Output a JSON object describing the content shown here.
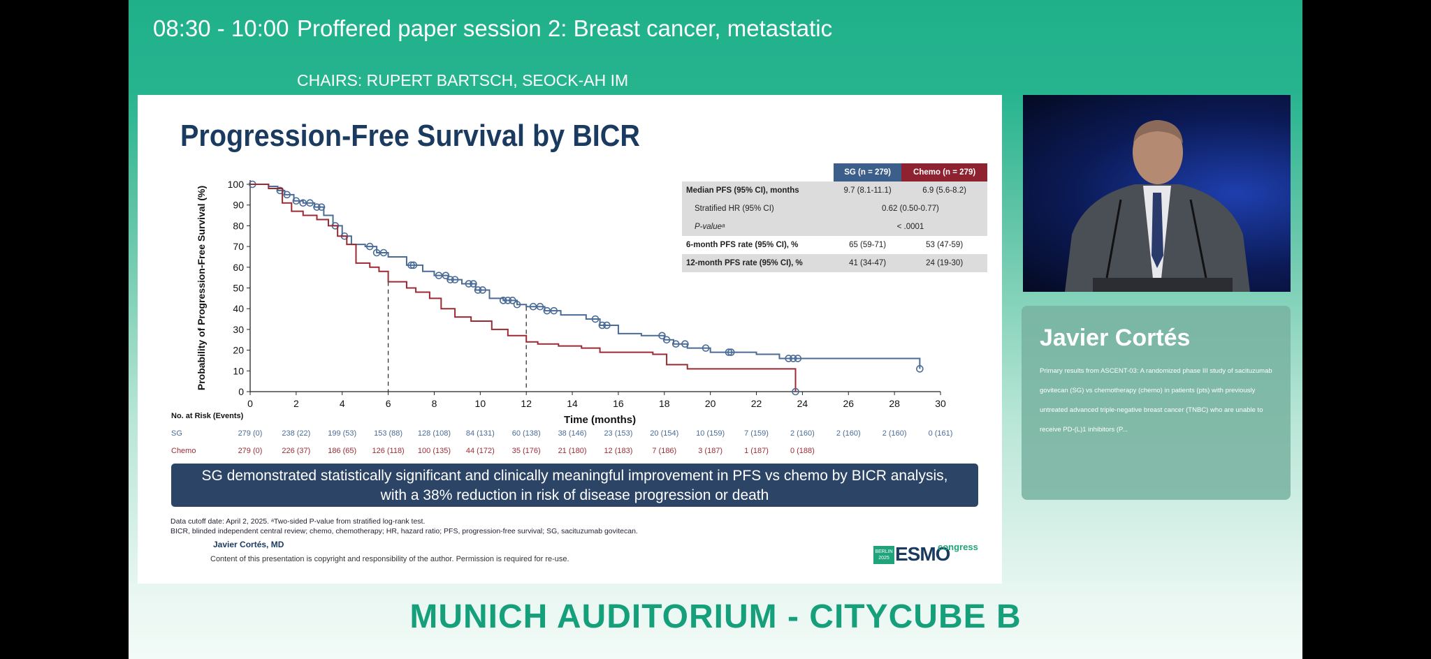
{
  "header": {
    "time": "08:30 - 10:00",
    "title": "Proffered paper session 2: Breast cancer, metastatic",
    "chairs": "CHAIRS: RUPERT BARTSCH, SEOCK-AH IM"
  },
  "slide": {
    "title": "Progression-Free Survival by BICR",
    "table": {
      "col_sg": "SG (n = 279)",
      "col_chemo": "Chemo (n = 279)",
      "rows": [
        {
          "label": "Median PFS (95% CI), months",
          "sg": "9.7 (8.1-11.1)",
          "chemo": "6.9 (5.6-8.2)"
        },
        {
          "label": "Stratified HR (95% CI)",
          "value": "0.62 (0.50-0.77)"
        },
        {
          "label": "P-valueᵃ",
          "value": "< .0001"
        },
        {
          "label": "6-month PFS rate (95% CI), %",
          "sg": "65 (59-71)",
          "chemo": "53 (47-59)"
        },
        {
          "label": "12-month PFS rate (95% CI), %",
          "sg": "41 (34-47)",
          "chemo": "24 (19-30)"
        }
      ]
    },
    "banner_line1": "SG demonstrated statistically significant and clinically meaningful improvement in PFS vs chemo by BICR analysis,",
    "banner_line2": "with a 38% reduction in risk of disease progression or death",
    "footnote1": "Data cutoff date: April 2, 2025. ᵃTwo-sided P-value from stratified log-rank test.",
    "footnote2": "BICR, blinded independent central review; chemo, chemotherapy; HR, hazard ratio; PFS, progression-free survival; SG, sacituzumab govitecan.",
    "presenter": "Javier Cortés, MD",
    "copyright": "Content of this presentation is copyright and responsibility of the author. Permission is required for re-use.",
    "logo": {
      "city": "BERLIN",
      "year": "2025",
      "name": "ESMO",
      "suffix": "congress"
    }
  },
  "chart_data": {
    "type": "line",
    "ylabel": "Probability of Progression-Free Survival (%)",
    "xlabel": "Time (months)",
    "xlim": [
      0,
      30
    ],
    "ylim": [
      0,
      100
    ],
    "xticks": [
      0,
      2,
      4,
      6,
      8,
      10,
      12,
      14,
      16,
      18,
      20,
      22,
      24,
      26,
      28,
      30
    ],
    "yticks": [
      0,
      10,
      20,
      30,
      40,
      50,
      60,
      70,
      80,
      90,
      100
    ],
    "colors": {
      "SG": "#4a6b96",
      "Chemo": "#9c2a33"
    },
    "series": [
      {
        "name": "SG",
        "x": [
          0,
          0.8,
          1.2,
          1.5,
          1.9,
          2.3,
          2.8,
          3.2,
          3.6,
          4.0,
          4.4,
          5.0,
          5.5,
          6.0,
          6.8,
          7.5,
          8.0,
          8.6,
          9.2,
          9.8,
          10.4,
          11.0,
          11.6,
          12.0,
          12.8,
          13.5,
          14.6,
          15.2,
          16.0,
          17.0,
          18.0,
          18.4,
          19.0,
          20.0,
          21.2,
          22.0,
          23.0,
          24.0,
          29.1
        ],
        "y": [
          100,
          99,
          97,
          95,
          92,
          91,
          89,
          85,
          80,
          75,
          71,
          70,
          67,
          65,
          61,
          58,
          56,
          54,
          52,
          49,
          45,
          44,
          42,
          41,
          39,
          37,
          35,
          32,
          28,
          27,
          25,
          23,
          21,
          19,
          19,
          18,
          16,
          16,
          11
        ]
      },
      {
        "name": "Chemo",
        "x": [
          0,
          0.8,
          1.4,
          1.8,
          2.3,
          2.9,
          3.4,
          3.8,
          4.2,
          4.6,
          5.2,
          5.6,
          6.0,
          6.8,
          7.2,
          7.8,
          8.3,
          8.9,
          9.6,
          10.5,
          11.2,
          12.0,
          12.5,
          13.4,
          14.4,
          15.2,
          16.0,
          17.5,
          18.1,
          19.0,
          20.5,
          21.5,
          23.0,
          23.7
        ],
        "y": [
          100,
          98,
          91,
          87,
          85,
          83,
          80,
          75,
          71,
          62,
          60,
          58,
          53,
          50,
          48,
          45,
          40,
          36,
          34,
          30,
          27,
          24,
          23,
          22,
          21,
          19,
          19,
          18,
          13,
          11,
          11,
          11,
          11,
          0
        ]
      }
    ],
    "censored": {
      "SG": [
        0.1,
        1.3,
        1.6,
        2.0,
        2.3,
        2.6,
        2.9,
        3.1,
        3.7,
        4.1,
        5.2,
        5.5,
        5.8,
        7.0,
        7.1,
        8.2,
        8.5,
        8.7,
        8.9,
        9.5,
        9.7,
        9.9,
        10.1,
        11.0,
        11.2,
        11.4,
        11.6,
        12.3,
        12.6,
        12.9,
        13.2,
        15.0,
        15.3,
        15.5,
        17.9,
        18.1,
        18.5,
        18.9,
        19.8,
        20.8,
        20.9,
        23.4,
        23.6,
        23.8,
        29.1
      ],
      "Chemo": [
        23.7
      ]
    },
    "landmarks": [
      {
        "x": 6,
        "y": 53
      },
      {
        "x": 12,
        "y": 41
      }
    ],
    "risk_table": {
      "title": "No. at Risk (Events)",
      "rows": [
        {
          "name": "SG",
          "values": [
            "279 (0)",
            "238 (22)",
            "199 (53)",
            "153 (88)",
            "128 (108)",
            "84 (131)",
            "60 (138)",
            "38 (146)",
            "23 (153)",
            "20 (154)",
            "10 (159)",
            "7 (159)",
            "2 (160)",
            "2 (160)",
            "2 (160)",
            "0 (161)"
          ]
        },
        {
          "name": "Chemo",
          "values": [
            "279 (0)",
            "226 (37)",
            "186 (65)",
            "126 (118)",
            "100 (135)",
            "44 (172)",
            "35 (176)",
            "21 (180)",
            "12 (183)",
            "7 (186)",
            "3 (187)",
            "1 (187)",
            "0 (188)"
          ]
        }
      ]
    }
  },
  "speaker": {
    "name": "Javier Cortés",
    "description": "Primary results from ASCENT-03: A randomized phase III study of sacituzumab govitecan (SG) vs chemotherapy (chemo) in patients (pts) with previously untreated advanced triple-negative breast cancer (TNBC) who are unable to receive PD-(L)1 inhibitors (P..."
  },
  "venue": "MUNICH AUDITORIUM - CITYCUBE B"
}
